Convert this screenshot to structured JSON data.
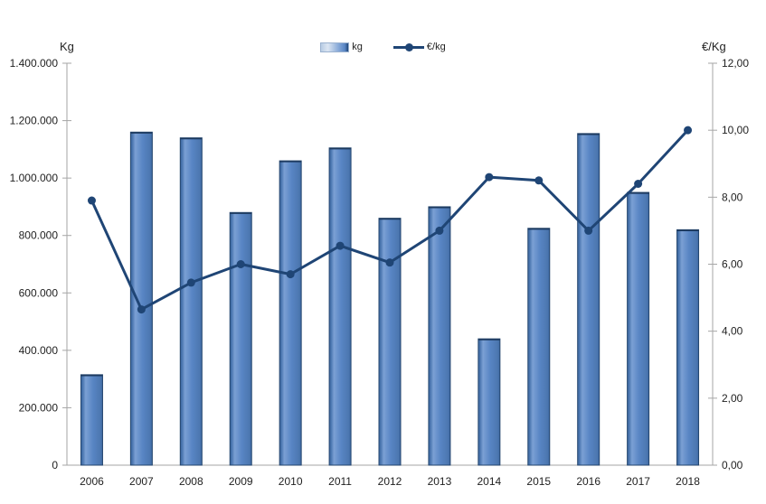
{
  "chart": {
    "background": "#ffffff",
    "axes": {
      "left": {
        "title": "Kg",
        "tick_labels": [
          "1.400.000",
          "1.200.000",
          "1.000.000",
          "800.000",
          "600.000",
          "400.000",
          "200.000",
          "0"
        ]
      },
      "right": {
        "title": "€/Kg",
        "tick_labels": [
          "12,00",
          "10,00",
          "8,00",
          "6,00",
          "4,00",
          "2,00",
          "0,00"
        ]
      }
    },
    "legend": {
      "items": [
        {
          "label": "kg",
          "swatch": "bar-swatch"
        },
        {
          "label": "€/kg",
          "swatch": "line-marker-swatch"
        }
      ]
    },
    "colors": {
      "bar_fill": "#5885c4",
      "bar_fill_light": "#7ba0d4",
      "bar_fill_dark": "#3c66a0",
      "bar_border": "#24466e",
      "line": "#1f4575",
      "axis": "#a6a6a6",
      "text": "#1f1f1f"
    }
  },
  "chart_data": {
    "type": "bar+line combo",
    "categories": [
      "2006",
      "2007",
      "2008",
      "2009",
      "2010",
      "2011",
      "2012",
      "2013",
      "2014",
      "2015",
      "2016",
      "2017",
      "2018"
    ],
    "series": [
      {
        "name": "kg",
        "type": "bar",
        "axis": "left",
        "values": [
          315000,
          1160000,
          1140000,
          880000,
          1060000,
          1105000,
          860000,
          900000,
          440000,
          825000,
          1155000,
          950000,
          820000
        ]
      },
      {
        "name": "€/kg",
        "type": "line",
        "axis": "right",
        "values": [
          7.9,
          4.65,
          5.45,
          6.0,
          5.7,
          6.55,
          6.05,
          7.0,
          8.6,
          8.5,
          7.0,
          8.4,
          10.0
        ]
      }
    ],
    "ylim_left": [
      0,
      1400000
    ],
    "ylim_right": [
      0,
      12
    ],
    "xlabel": "",
    "ylabel_left": "Kg",
    "ylabel_right": "€/Kg",
    "grid": false,
    "legend_position": "top-center"
  }
}
